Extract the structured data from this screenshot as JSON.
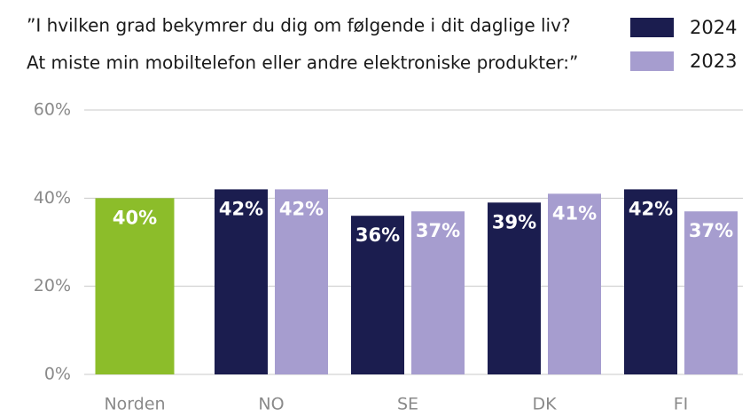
{
  "chart_data": {
    "type": "bar",
    "title": "”I hvilken grad bekymrer du dig om følgende i dit daglige liv?",
    "subtitle": "At miste min mobiltelefon eller andre elektroniske produkter:”",
    "categories": [
      "Norden",
      "NO",
      "SE",
      "DK",
      "FI"
    ],
    "series": [
      {
        "name": "2024",
        "color": "#1b1d4f",
        "point_colors": [
          "#8cbd2a",
          "#1b1d4f",
          "#1b1d4f",
          "#1b1d4f",
          "#1b1d4f"
        ],
        "values": [
          40,
          42,
          36,
          39,
          42
        ],
        "value_labels": [
          "40%",
          "42%",
          "36%",
          "39%",
          "42%"
        ]
      },
      {
        "name": "2023",
        "color": "#a69dcf",
        "values": [
          null,
          42,
          37,
          41,
          37
        ],
        "value_labels": [
          null,
          "42%",
          "37%",
          "41%",
          "37%"
        ]
      }
    ],
    "ylim": [
      0,
      60
    ],
    "yticks": [
      {
        "value": 0,
        "label": "0%"
      },
      {
        "value": 20,
        "label": "20%"
      },
      {
        "value": 40,
        "label": "40%"
      },
      {
        "value": 60,
        "label": "60%"
      }
    ],
    "grid": true,
    "legend": "top-right"
  }
}
